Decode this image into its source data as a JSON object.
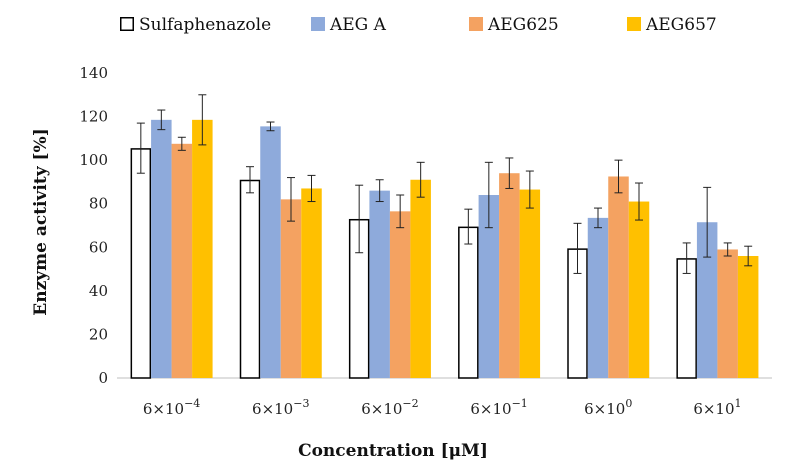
{
  "chart_data": {
    "type": "bar",
    "xlabel": "Concentration [μM]",
    "ylabel": "Enzyme activity [%]",
    "ylim": [
      0,
      140
    ],
    "yticks": [
      0,
      20,
      40,
      60,
      80,
      100,
      120,
      140
    ],
    "categories": [
      {
        "base": "6×10",
        "exp": "−4"
      },
      {
        "base": "6×10",
        "exp": "−3"
      },
      {
        "base": "6×10",
        "exp": "−2"
      },
      {
        "base": "6×10",
        "exp": "−1"
      },
      {
        "base": "6×10",
        "exp": "0"
      },
      {
        "base": "6×10",
        "exp": "1"
      }
    ],
    "legend_position": "top",
    "series": [
      {
        "name": "Sulfaphenazole",
        "color": "#ffffff",
        "stroke": "#000000",
        "values": [
          105.5,
          91,
          73,
          69.5,
          59.5,
          55
        ],
        "errors": [
          11.5,
          6,
          15.5,
          8,
          11.5,
          7
        ]
      },
      {
        "name": "AEG A",
        "color": "#8eaadb",
        "stroke": "none",
        "values": [
          118.5,
          115.5,
          86,
          84,
          73.5,
          71.5
        ],
        "errors": [
          4.5,
          2,
          5,
          15,
          4.5,
          16
        ]
      },
      {
        "name": "AEG625",
        "color": "#f4a261",
        "stroke": "none",
        "values": [
          107.5,
          82,
          76.5,
          94,
          92.5,
          59
        ],
        "errors": [
          3,
          10,
          7.5,
          7,
          7.5,
          3
        ]
      },
      {
        "name": "AEG657",
        "color": "#ffc000",
        "stroke": "none",
        "values": [
          118.5,
          87,
          91,
          86.5,
          81,
          56
        ],
        "errors": [
          11.5,
          6,
          8,
          8.5,
          8.5,
          4.5
        ]
      }
    ]
  }
}
